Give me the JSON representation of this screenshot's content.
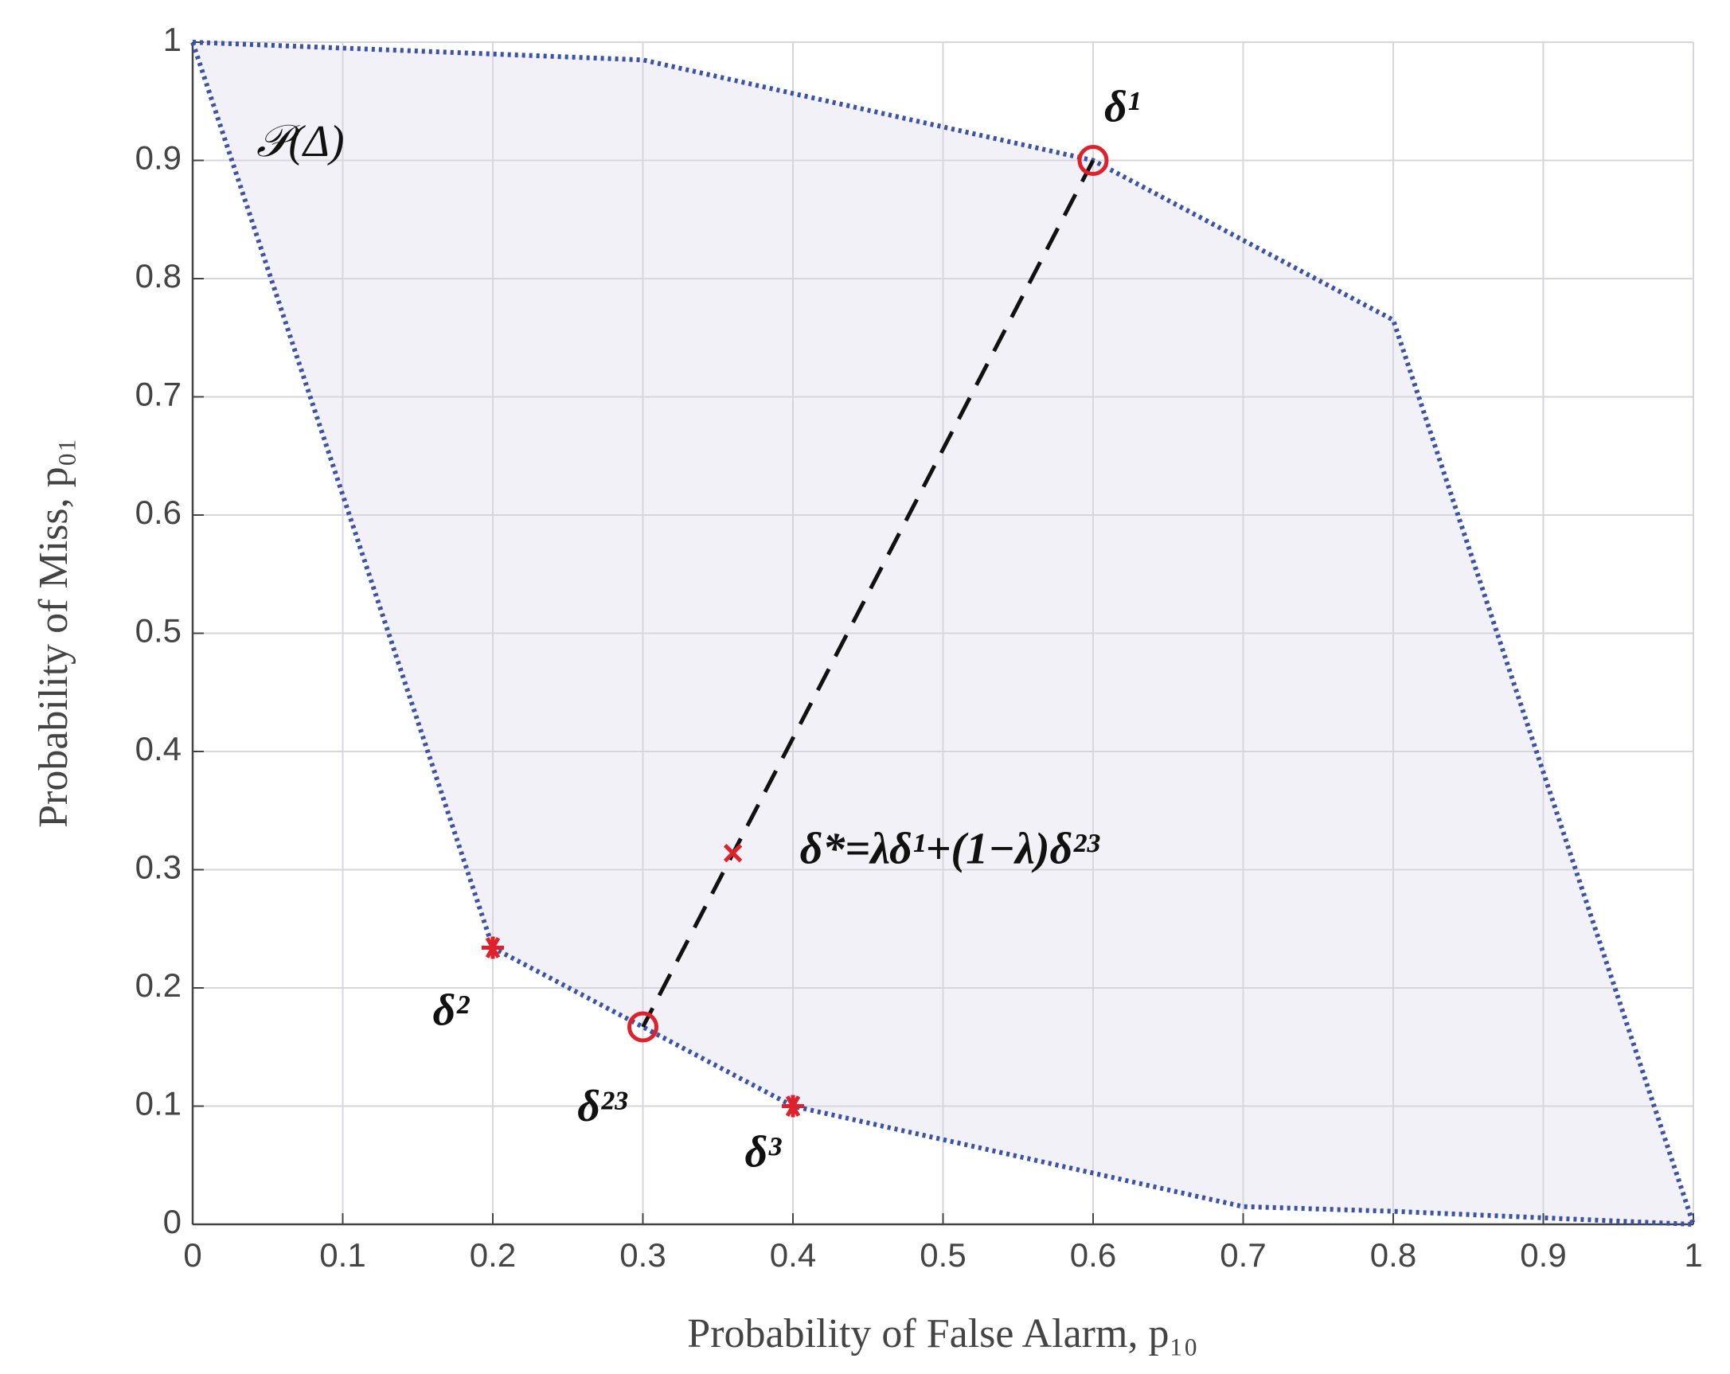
{
  "chart_data": {
    "type": "scatter",
    "xlabel": "Probability of False Alarm, p₁₀",
    "ylabel": "Probability of Miss, p₀₁",
    "region_label": "𝒫(Δ)",
    "xlim": [
      0,
      1
    ],
    "ylim": [
      0,
      1
    ],
    "xticks": [
      0,
      0.1,
      0.2,
      0.3,
      0.4,
      0.5,
      0.6,
      0.7,
      0.8,
      0.9,
      1
    ],
    "yticks": [
      0,
      0.1,
      0.2,
      0.3,
      0.4,
      0.5,
      0.6,
      0.7,
      0.8,
      0.9,
      1
    ],
    "grid": true,
    "region": {
      "color": "#3a52a8",
      "fill": "#f1f1f7",
      "x": [
        0,
        0.3,
        0.6,
        0.8,
        1,
        0.8,
        0.7,
        0.4,
        0.3,
        0.2,
        0
      ],
      "y": [
        1,
        0.985,
        0.9,
        0.765,
        0,
        0.011,
        0.015,
        0.1,
        0.167,
        0.234,
        1
      ]
    },
    "points": [
      {
        "name": "δ¹",
        "x": 0.6,
        "y": 0.9,
        "marker": "circle",
        "color": "#e0202a"
      },
      {
        "name": "δ²",
        "x": 0.2,
        "y": 0.234,
        "marker": "star",
        "color": "#e0202a"
      },
      {
        "name": "δ²³",
        "x": 0.3,
        "y": 0.167,
        "marker": "circle",
        "color": "#e0202a"
      },
      {
        "name": "δ³",
        "x": 0.4,
        "y": 0.1,
        "marker": "star",
        "color": "#e0202a"
      },
      {
        "name": "δ*=λδ¹+(1−λ)δ²³",
        "x": 0.36,
        "y": 0.314,
        "marker": "x",
        "color": "#e0202a"
      }
    ]
  }
}
